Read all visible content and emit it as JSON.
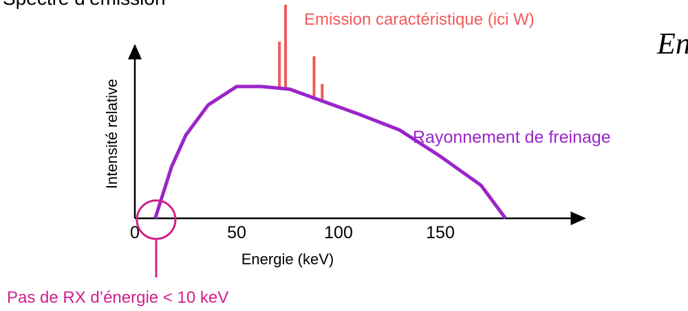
{
  "header": {
    "cropped_title": "Spectre d’émission",
    "cropped_formula": "En"
  },
  "chart_data": {
    "type": "line",
    "title": "",
    "xlabel": "Energie (keV)",
    "ylabel": "Intensité relative",
    "xlim": [
      0,
      200
    ],
    "ylim": [
      0,
      1.05
    ],
    "x_ticks": [
      0,
      50,
      100,
      150
    ],
    "grid": false,
    "series": [
      {
        "name": "Rayonnement de freinage",
        "color": "#9b25c8",
        "x": [
          10,
          18,
          25,
          36,
          50,
          62,
          76,
          92,
          110,
          130,
          150,
          170,
          182
        ],
        "y": [
          0,
          0.39,
          0.63,
          0.86,
          1.0,
          1.0,
          0.98,
          0.89,
          0.79,
          0.67,
          0.47,
          0.25,
          0.0
        ]
      },
      {
        "name": "Emission caractéristique (ici W)",
        "color": "#f05a5a",
        "type": "lines",
        "lines": [
          {
            "x": 71,
            "y": 1.34
          },
          {
            "x": 74,
            "y": 1.62
          },
          {
            "x": 88,
            "y": 1.23
          },
          {
            "x": 92,
            "y": 1.02
          }
        ]
      }
    ],
    "annotations": [
      {
        "text": "Pas de RX d’énergie < 10 keV",
        "x": 10,
        "color": "#d0208a"
      }
    ]
  }
}
